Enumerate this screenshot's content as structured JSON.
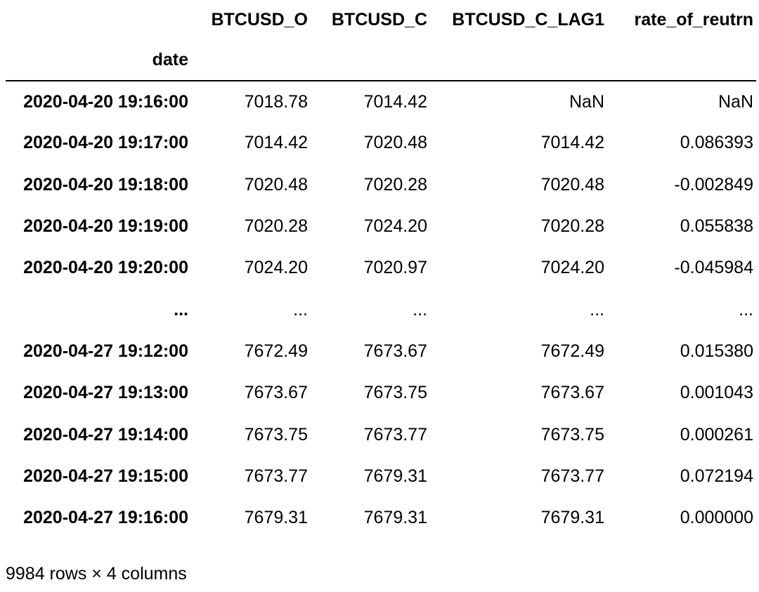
{
  "dataframe": {
    "index_name": "date",
    "columns": [
      "BTCUSD_O",
      "BTCUSD_C",
      "BTCUSD_C_LAG1",
      "rate_of_reutrn"
    ],
    "rows": [
      {
        "index": "2020-04-20 19:16:00",
        "values": [
          "7018.78",
          "7014.42",
          "NaN",
          "NaN"
        ]
      },
      {
        "index": "2020-04-20 19:17:00",
        "values": [
          "7014.42",
          "7020.48",
          "7014.42",
          "0.086393"
        ]
      },
      {
        "index": "2020-04-20 19:18:00",
        "values": [
          "7020.48",
          "7020.28",
          "7020.48",
          "-0.002849"
        ]
      },
      {
        "index": "2020-04-20 19:19:00",
        "values": [
          "7020.28",
          "7024.20",
          "7020.28",
          "0.055838"
        ]
      },
      {
        "index": "2020-04-20 19:20:00",
        "values": [
          "7024.20",
          "7020.97",
          "7024.20",
          "-0.045984"
        ]
      },
      {
        "index": "...",
        "values": [
          "...",
          "...",
          "...",
          "..."
        ]
      },
      {
        "index": "2020-04-27 19:12:00",
        "values": [
          "7672.49",
          "7673.67",
          "7672.49",
          "0.015380"
        ]
      },
      {
        "index": "2020-04-27 19:13:00",
        "values": [
          "7673.67",
          "7673.75",
          "7673.67",
          "0.001043"
        ]
      },
      {
        "index": "2020-04-27 19:14:00",
        "values": [
          "7673.75",
          "7673.77",
          "7673.75",
          "0.000261"
        ]
      },
      {
        "index": "2020-04-27 19:15:00",
        "values": [
          "7673.77",
          "7679.31",
          "7673.77",
          "0.072194"
        ]
      },
      {
        "index": "2020-04-27 19:16:00",
        "values": [
          "7679.31",
          "7679.31",
          "7679.31",
          "0.000000"
        ]
      }
    ],
    "shape_text": "9984 rows × 4 columns"
  }
}
